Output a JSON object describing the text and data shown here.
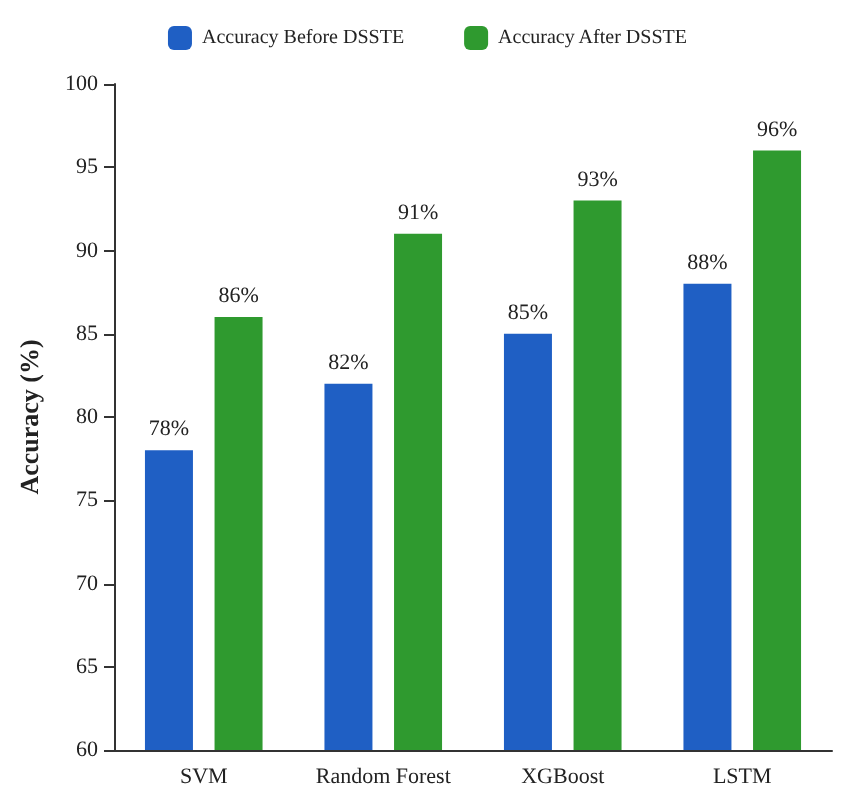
{
  "chart_data": {
    "type": "bar",
    "ylabel": "Accuracy (%)",
    "categories": [
      "SVM",
      "Random Forest",
      "XGBoost",
      "LSTM"
    ],
    "series": [
      {
        "name": "Accuracy Before DSSTE",
        "color": "#1f5fc4",
        "values": [
          78,
          82,
          85,
          88
        ],
        "value_labels": [
          "78%",
          "82%",
          "85%",
          "88%"
        ]
      },
      {
        "name": "Accuracy After DSSTE",
        "color": "#2f9a2f",
        "values": [
          86,
          91,
          93,
          96
        ],
        "value_labels": [
          "86%",
          "91%",
          "93%",
          "96%"
        ]
      }
    ],
    "ylim": [
      60,
      100
    ],
    "yticks": [
      60,
      65,
      70,
      75,
      80,
      85,
      90,
      95,
      100
    ],
    "grid": false,
    "legend": "top"
  }
}
